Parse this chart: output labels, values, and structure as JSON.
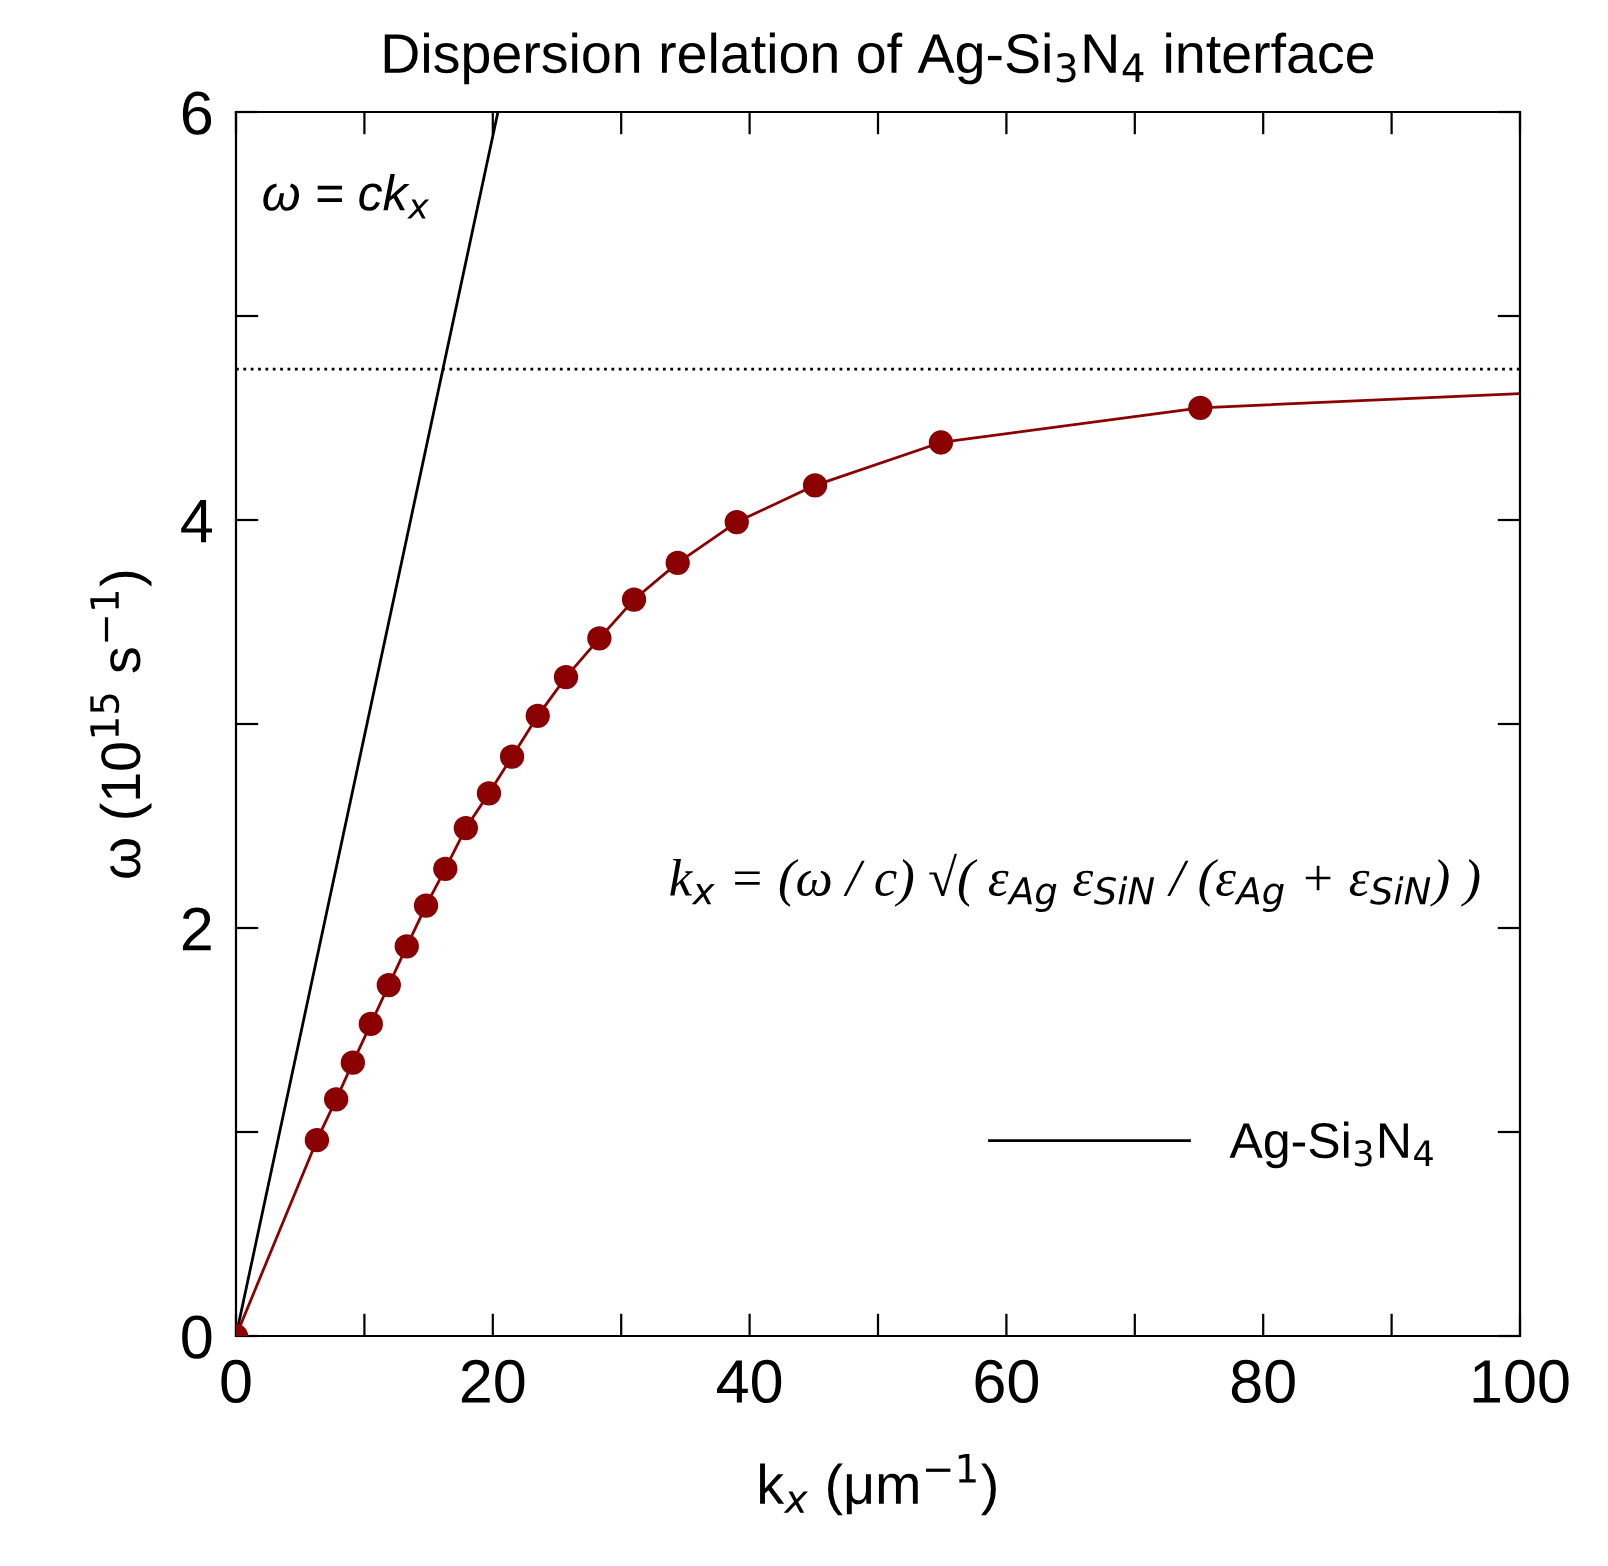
{
  "chart_data": {
    "type": "line",
    "title": "Dispersion relation of Ag-Si$_{3}$N$_{4}$ interface",
    "xlabel": "k$_{x}$ (μm$^{−1}$)",
    "ylabel": "ω (10$^{15}$ s$^{−1}$)",
    "xlim": [
      0,
      100
    ],
    "ylim": [
      0,
      6
    ],
    "xticks": [
      0,
      {
        "value": 10,
        "label": null
      },
      20,
      {
        "value": 30,
        "label": null
      },
      40,
      {
        "value": 50,
        "label": null
      },
      60,
      {
        "value": 70,
        "label": null
      },
      80,
      {
        "value": 90,
        "label": null
      },
      100
    ],
    "yticks": [
      0,
      {
        "value": 1,
        "label": null
      },
      2,
      {
        "value": 3,
        "label": null
      },
      4,
      {
        "value": 5,
        "label": null
      },
      6
    ],
    "grid": false,
    "legend": "bottom right",
    "series": [
      {
        "name": "Ag-Si$_{3}$N$_{4}$",
        "color": "#000000",
        "marker": "none",
        "x": [
          0,
          20.4
        ],
        "values": [
          0,
          6
        ]
      },
      {
        "color": "#8b0000",
        "marker": "none",
        "x": [
          0,
          6.3,
          7.8,
          9.1,
          10.5,
          11.9,
          13.3,
          14.8,
          16.3,
          17.9,
          19.7,
          21.5,
          23.5,
          25.7,
          28.3,
          31.0,
          34.4,
          39.0,
          45.1,
          54.9,
          75.1,
          100
        ],
        "values": [
          0,
          0.96,
          1.16,
          1.34,
          1.53,
          1.72,
          1.91,
          2.11,
          2.29,
          2.49,
          2.66,
          2.84,
          3.04,
          3.23,
          3.42,
          3.61,
          3.79,
          3.99,
          4.17,
          4.38,
          4.55,
          4.62
        ]
      },
      {
        "type": "scatter",
        "color": "#8b0000",
        "marker": "circle",
        "x": [
          0,
          6.3,
          7.8,
          9.1,
          10.5,
          11.9,
          13.3,
          14.8,
          16.3,
          17.9,
          19.7,
          21.5,
          23.5,
          25.7,
          28.3,
          31.0,
          34.4,
          39.0,
          45.1,
          54.9,
          75.1
        ],
        "values": [
          0,
          0.96,
          1.16,
          1.34,
          1.53,
          1.72,
          1.91,
          2.11,
          2.29,
          2.49,
          2.66,
          2.84,
          3.04,
          3.23,
          3.42,
          3.61,
          3.79,
          3.99,
          4.17,
          4.38,
          4.55
        ]
      }
    ],
    "ref_lines": [
      {
        "axis": "y",
        "value": 4.74,
        "color": "#000000",
        "line_style": "dotted"
      }
    ],
    "annotations": [
      "ω = ck$_{x}$",
      "k$_{x}$ = (ω / c) √( ε$_{Ag}$ ε$_{SiN}$ / (ε$_{Ag}$ + ε$_{SiN}$) )"
    ]
  }
}
